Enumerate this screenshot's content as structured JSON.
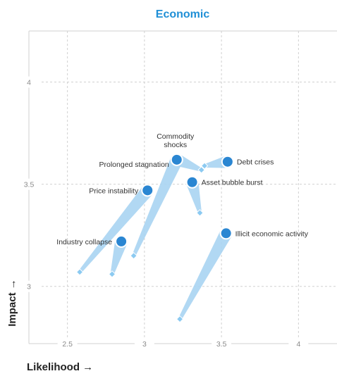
{
  "chart_data": {
    "type": "scatter",
    "title": "Economic",
    "xlabel": "Likelihood →",
    "ylabel": "Impact →",
    "xlim": [
      2.25,
      4.25
    ],
    "ylim": [
      2.72,
      4.25
    ],
    "x_ticks": [
      {
        "value": 2.5,
        "label": "2.5"
      },
      {
        "value": 3,
        "label": "3"
      },
      {
        "value": 3.5,
        "label": "3.5"
      },
      {
        "value": 4,
        "label": "4"
      }
    ],
    "y_ticks": [
      {
        "value": 3,
        "label": "3"
      },
      {
        "value": 3.5,
        "label": "3.5"
      },
      {
        "value": 4,
        "label": "4"
      }
    ],
    "grid": true,
    "points": [
      {
        "name": "Commodity shocks",
        "label_lines": [
          "Commodity",
          "shocks"
        ],
        "x": 3.21,
        "y": 3.62,
        "prev_x": 3.37,
        "prev_y": 3.57,
        "label_pos": "above"
      },
      {
        "name": "Prolonged stagnation",
        "label_lines": [
          "Prolonged stagnation"
        ],
        "x": 3.21,
        "y": 3.62,
        "prev_x": 2.93,
        "prev_y": 3.15,
        "label_pos": "left-above"
      },
      {
        "name": "Debt crises",
        "label_lines": [
          "Debt crises"
        ],
        "x": 3.54,
        "y": 3.61,
        "prev_x": 3.39,
        "prev_y": 3.59,
        "label_pos": "right"
      },
      {
        "name": "Asset bubble burst",
        "label_lines": [
          "Asset bubble burst"
        ],
        "x": 3.31,
        "y": 3.51,
        "prev_x": 3.36,
        "prev_y": 3.36,
        "label_pos": "right"
      },
      {
        "name": "Price instability",
        "label_lines": [
          "Price instability"
        ],
        "x": 3.02,
        "y": 3.47,
        "prev_x": 2.58,
        "prev_y": 3.07,
        "label_pos": "left"
      },
      {
        "name": "Industry collapse",
        "label_lines": [
          "Industry collapse"
        ],
        "x": 2.85,
        "y": 3.22,
        "prev_x": 2.79,
        "prev_y": 3.06,
        "label_pos": "left"
      },
      {
        "name": "Illicit economic activity",
        "label_lines": [
          "Illicit economic activity"
        ],
        "x": 3.53,
        "y": 3.26,
        "prev_x": 3.23,
        "prev_y": 2.84,
        "label_pos": "right"
      }
    ],
    "colors": {
      "title": "#1f8fd6",
      "point": "#2a86d2",
      "point_stroke": "#ffffff",
      "trail": "#a9d4f2",
      "prev_marker": "#8ccaf1",
      "grid": "#d0d0d0",
      "frame": "#d0d0d0"
    }
  }
}
